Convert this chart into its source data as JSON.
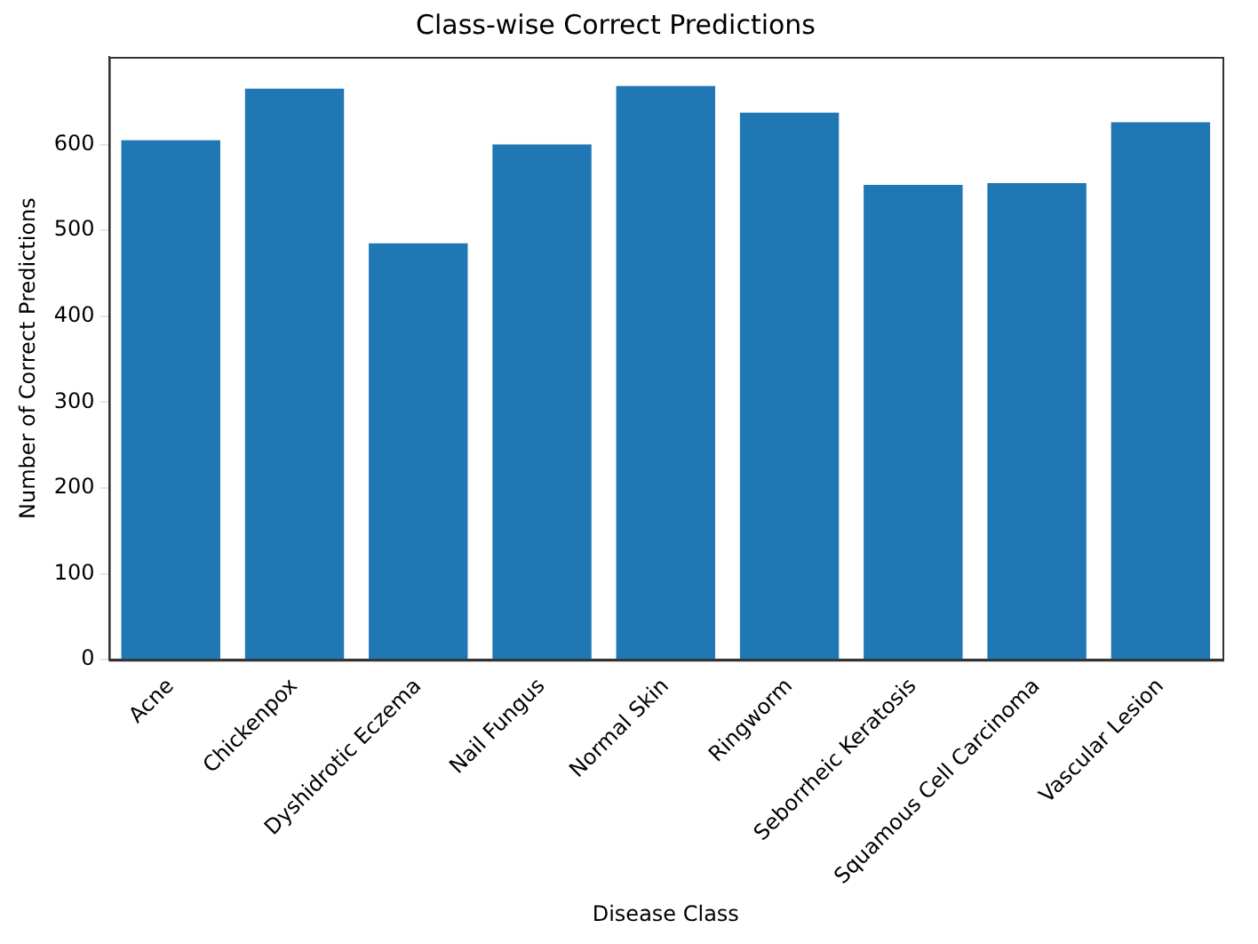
{
  "chart_data": {
    "type": "bar",
    "title": "Class-wise Correct Predictions",
    "xlabel": "Disease Class",
    "ylabel": "Number of Correct Predictions",
    "categories": [
      "Acne",
      "Chickenpox",
      "Dyshidrotic Eczema",
      "Nail Fungus",
      "Normal Skin",
      "Ringworm",
      "Seborrheic Keratosis",
      "Squamous Cell Carcinoma",
      "Vascular Lesion"
    ],
    "values": [
      605,
      665,
      485,
      600,
      668,
      637,
      553,
      555,
      626
    ],
    "color": "#1f77b4",
    "ylim": [
      0,
      702
    ],
    "yticks": [
      0,
      100,
      200,
      300,
      400,
      500,
      600
    ],
    "grid": false
  }
}
